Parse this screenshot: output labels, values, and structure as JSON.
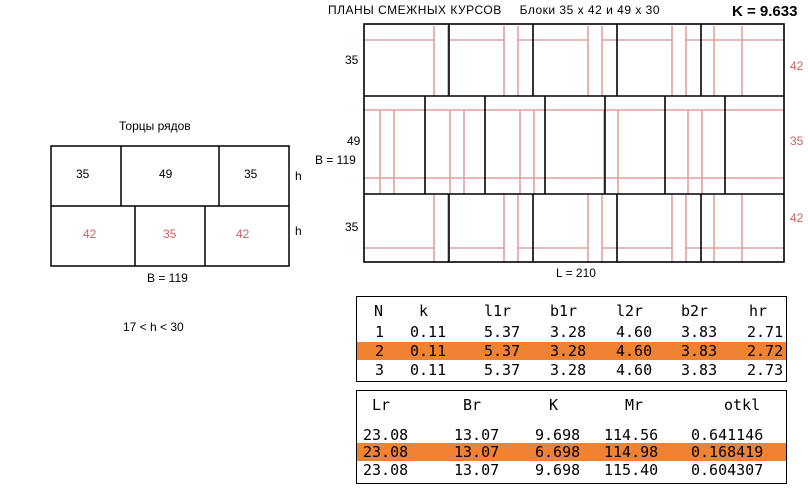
{
  "header": {
    "title": "ПЛАНЫ СМЕЖНЫХ КУРСОВ",
    "blocks_label": "Блоки  35 х 42  и  49 х 30",
    "k_value": "K = 9.633"
  },
  "end_faces": {
    "title": "Торцы рядов",
    "top_row": [
      "35",
      "49",
      "35"
    ],
    "bottom_row": [
      "42",
      "35",
      "42"
    ],
    "h_labels": [
      "h",
      "h"
    ],
    "width_label": "B = 119",
    "constraint": "17  <  h  <  30"
  },
  "plan": {
    "left_labels": [
      "35",
      "49",
      "35"
    ],
    "right_labels": [
      "42",
      "35",
      "42"
    ],
    "width_label": "B = 119",
    "length_label": "L = 210"
  },
  "table1": {
    "columns": [
      "N",
      "k",
      "l1r",
      "b1r",
      "l2r",
      "b2r",
      "hr"
    ],
    "rows": [
      [
        "1",
        "0.11",
        "5.37",
        "3.28",
        "4.60",
        "3.83",
        "2.71"
      ],
      [
        "2",
        "0.11",
        "5.37",
        "3.28",
        "4.60",
        "3.83",
        "2.72"
      ],
      [
        "3",
        "0.11",
        "5.37",
        "3.28",
        "4.60",
        "3.83",
        "2.73"
      ]
    ],
    "highlighted_row": 1
  },
  "table2": {
    "columns": [
      "Lr",
      "Br",
      "K",
      "Mr",
      "otkl"
    ],
    "rows": [
      [
        "23.08",
        "13.07",
        "9.698",
        "114.56",
        "0.641146"
      ],
      [
        "23.08",
        "13.07",
        "6.698",
        "114.98",
        "0.168419"
      ],
      [
        "23.08",
        "13.07",
        "9.698",
        "115.40",
        "0.604307"
      ]
    ],
    "highlighted_row": 1
  },
  "colors": {
    "highlight": "#f08232",
    "pink": "#c86464",
    "pink_line": "#e0a0a0"
  }
}
